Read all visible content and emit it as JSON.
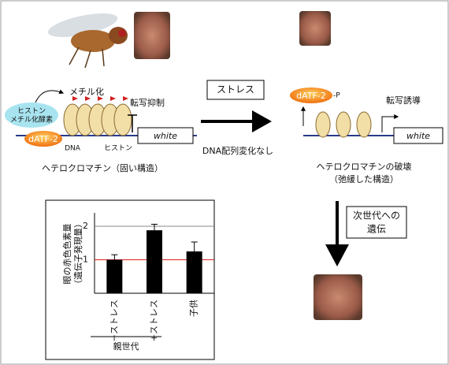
{
  "left": {
    "methylase": [
      "ヒストン",
      "メチル化酵素"
    ],
    "factor": "dATF-2",
    "methylation": "メチル化",
    "repression": "転写抑制",
    "gene": "white",
    "dna": "DNA",
    "histone": "ヒストン",
    "caption": "ヘテロクロマチン（固い構造）"
  },
  "middle": {
    "stress": "ストレス",
    "note": "DNA配列変化なし"
  },
  "right": {
    "factor": "dATF-2",
    "phospho": "-P",
    "induction": "転写誘導",
    "gene": "white",
    "caption": [
      "ヘテロクロマチンの破壊",
      "（弛緩した構造）"
    ],
    "inheritance": [
      "次世代への",
      "遺伝"
    ]
  },
  "chart": {
    "type": "bar",
    "y_label": [
      "眼の赤色色素量",
      "（遺伝子発現量）"
    ],
    "categories": [
      "−ストレス",
      "+ストレス",
      "子供"
    ],
    "group_label": "親世代",
    "values": [
      1.0,
      1.88,
      1.25
    ],
    "errors": [
      0.15,
      0.18,
      0.28
    ],
    "color": "#000000",
    "ylim": [
      0,
      2.4
    ],
    "yticks": [
      1,
      2
    ],
    "grid": true,
    "reference_line": 1,
    "reference_color": "#e02020"
  }
}
